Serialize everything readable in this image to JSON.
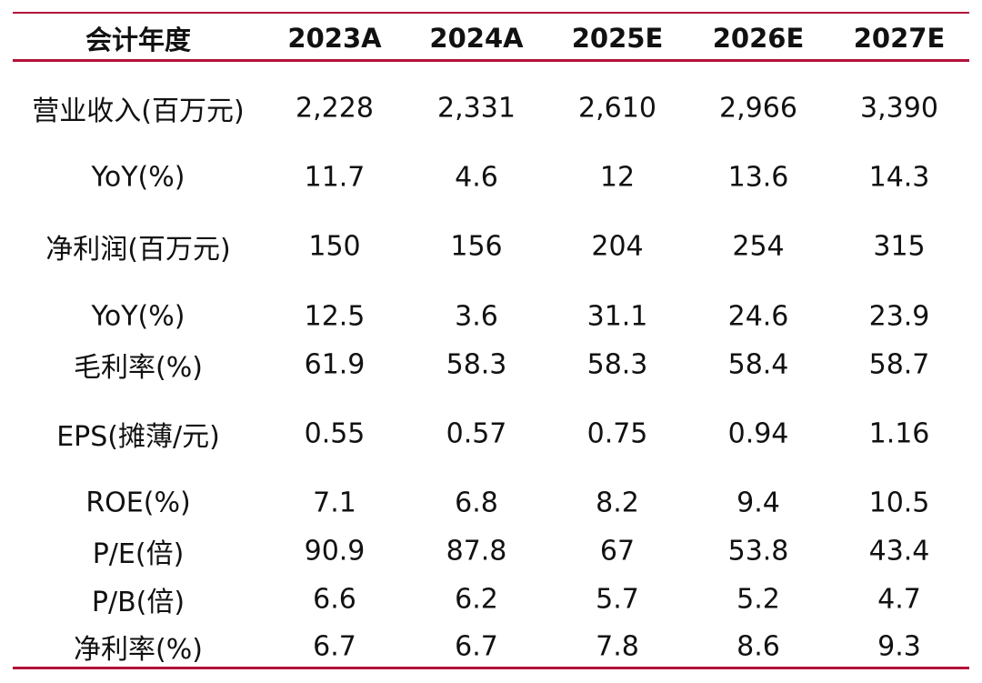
{
  "table": {
    "header": [
      "会计年度",
      "2023A",
      "2024A",
      "2025E",
      "2026E",
      "2027E"
    ],
    "rows": [
      [
        "营业收入(百万元)",
        "2,228",
        "2,331",
        "2,610",
        "2,966",
        "3,390"
      ],
      [
        "YoY(%)",
        "11.7",
        "4.6",
        "12",
        "13.6",
        "14.3"
      ],
      [
        "净利润(百万元)",
        "150",
        "156",
        "204",
        "254",
        "315"
      ],
      [
        "YoY(%)",
        "12.5",
        "3.6",
        "31.1",
        "24.6",
        "23.9"
      ],
      [
        "毛利率(%)",
        "61.9",
        "58.3",
        "58.3",
        "58.4",
        "58.7"
      ],
      [
        "EPS(摊薄/元)",
        "0.55",
        "0.57",
        "0.75",
        "0.94",
        "1.16"
      ],
      [
        "ROE(%)",
        "7.1",
        "6.8",
        "8.2",
        "9.4",
        "10.5"
      ],
      [
        "P/E(倍)",
        "90.9",
        "87.8",
        "67",
        "53.8",
        "43.4"
      ],
      [
        "P/B(倍)",
        "6.6",
        "6.2",
        "5.7",
        "5.2",
        "4.7"
      ],
      [
        "净利率(%)",
        "6.7",
        "6.7",
        "7.8",
        "8.6",
        "9.3"
      ]
    ]
  }
}
